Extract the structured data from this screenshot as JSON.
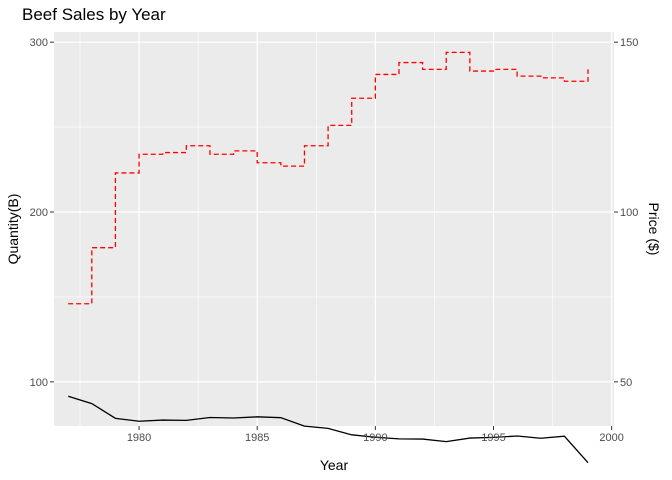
{
  "chart_data": {
    "type": "line",
    "title": "Beef Sales by Year",
    "xlabel": "Year",
    "ylabel": "Quantity(B)",
    "y2label": "Price ($)",
    "xlim": [
      1976.4,
      2000.1
    ],
    "ylim": [
      74,
      306
    ],
    "y2lim": [
      37,
      153
    ],
    "x_ticks": [
      1980,
      1985,
      1990,
      1995,
      2000
    ],
    "x_tick_labels": [
      "1980",
      "1985",
      "1990",
      "1995",
      "2000"
    ],
    "y_ticks": [
      100,
      200,
      300
    ],
    "y_tick_labels": [
      "100",
      "200",
      "300"
    ],
    "y2_ticks": [
      50,
      100,
      150
    ],
    "y2_tick_labels": [
      "50",
      "100",
      "150"
    ],
    "grid": true,
    "series": [
      {
        "name": "Quantity",
        "axis": "left",
        "style": "solid",
        "color": "#000000",
        "x": [
          1977,
          1978,
          1979,
          1980,
          1981,
          1982,
          1983,
          1984,
          1985,
          1986,
          1987,
          1988,
          1989,
          1990,
          1991,
          1992,
          1993,
          1994,
          1995,
          1996,
          1997,
          1998,
          1999
        ],
        "values": [
          91.5,
          87.2,
          78.5,
          76.8,
          77.5,
          77.3,
          79.0,
          78.7,
          79.4,
          78.9,
          73.9,
          72.6,
          68.8,
          67.4,
          66.4,
          66.3,
          64.8,
          66.9,
          67.3,
          68.1,
          66.8,
          68.0,
          52.4
        ]
      },
      {
        "name": "Price",
        "axis": "right",
        "style": "step-dashed",
        "color": "#ff0000",
        "x": [
          1977,
          1978,
          1979,
          1980,
          1981,
          1982,
          1983,
          1984,
          1985,
          1986,
          1987,
          1988,
          1989,
          1990,
          1991,
          1992,
          1993,
          1994,
          1995,
          1996,
          1997,
          1998,
          1999
        ],
        "values": [
          73.0,
          89.5,
          111.5,
          117.0,
          117.5,
          119.5,
          117.0,
          118.0,
          114.5,
          113.5,
          119.5,
          125.5,
          133.5,
          140.5,
          144.0,
          142.0,
          147.0,
          141.5,
          142.0,
          140.0,
          139.5,
          138.5,
          142.0
        ]
      }
    ]
  }
}
